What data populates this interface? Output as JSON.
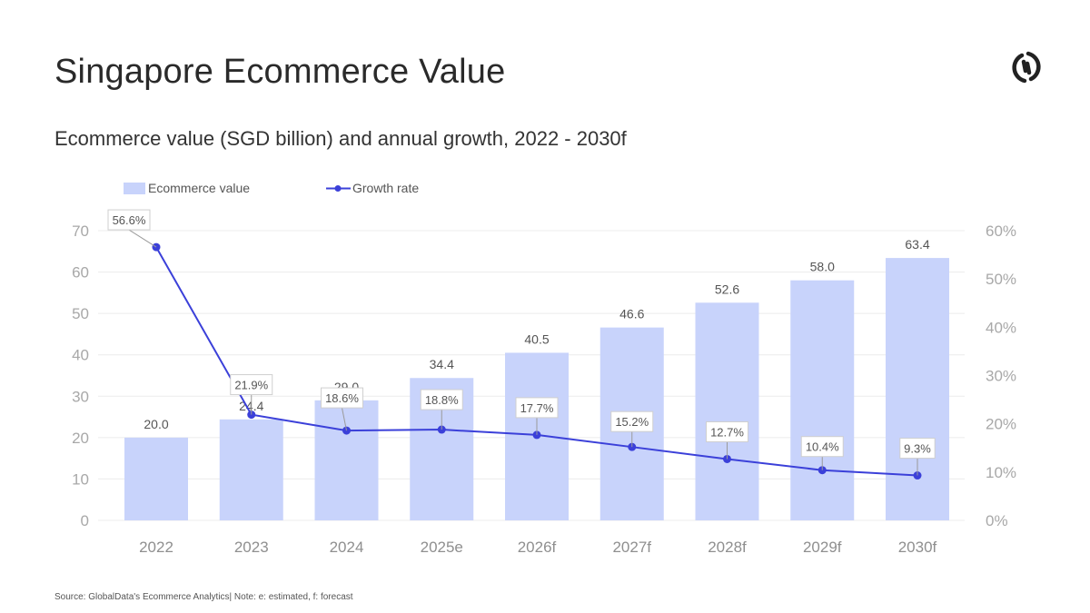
{
  "header": {
    "title": "Singapore Ecommerce Value",
    "subtitle": "Ecommerce value (SGD billion) and annual growth, 2022 - 2030f",
    "logo_icon": "globaldata-logo-icon"
  },
  "footer": {
    "source": "Source: GlobalData's Ecommerce Analytics| Note: e: estimated, f: forecast"
  },
  "colors": {
    "bar": "#c8d3fb",
    "line": "#3b40d9",
    "grid": "#ececec",
    "label_box_border": "#cfcfcf"
  },
  "chart_data": {
    "type": "bar+line",
    "title": "Singapore Ecommerce Value",
    "subtitle": "Ecommerce value (SGD billion) and annual growth, 2022 - 2030f",
    "categories": [
      "2022",
      "2023",
      "2024",
      "2025e",
      "2026f",
      "2027f",
      "2028f",
      "2029f",
      "2030f"
    ],
    "series": [
      {
        "name": "Ecommerce value",
        "type": "bar",
        "axis": "left",
        "values": [
          20.0,
          24.4,
          29.0,
          34.4,
          40.5,
          46.6,
          52.6,
          58.0,
          63.4
        ],
        "labels": [
          "20.0",
          "24.4",
          "29.0",
          "34.4",
          "40.5",
          "46.6",
          "52.6",
          "58.0",
          "63.4"
        ]
      },
      {
        "name": "Growth rate",
        "type": "line",
        "axis": "right",
        "values": [
          56.6,
          21.9,
          18.6,
          18.8,
          17.7,
          15.2,
          12.7,
          10.4,
          9.3
        ],
        "labels": [
          "56.6%",
          "21.9%",
          "18.6%",
          "18.8%",
          "17.7%",
          "15.2%",
          "12.7%",
          "10.4%",
          "9.3%"
        ]
      }
    ],
    "left_axis": {
      "ylim": [
        0,
        70
      ],
      "ticks": [
        "0",
        "10",
        "20",
        "30",
        "40",
        "50",
        "60",
        "70"
      ]
    },
    "right_axis": {
      "ylim": [
        0,
        60
      ],
      "ticks": [
        "0%",
        "10%",
        "20%",
        "30%",
        "40%",
        "50%",
        "60%"
      ]
    },
    "legend": {
      "position": "top-left",
      "entries": [
        "Ecommerce value",
        "Growth rate"
      ]
    },
    "grid": true
  }
}
